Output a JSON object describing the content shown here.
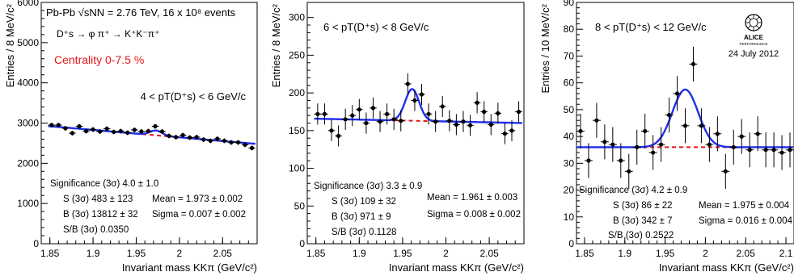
{
  "chart_data": [
    {
      "type": "scatter",
      "panel": "4-6 GeV",
      "xlabel": "Invariant mass KKπ (GeV/c²)",
      "ylabel": "Entries / 8 MeV/c²",
      "xlim": [
        1.84,
        2.09
      ],
      "ylim": [
        0,
        6000
      ],
      "xticks": [
        1.85,
        1.9,
        1.95,
        2.0,
        2.05
      ],
      "xtick_labels": [
        "1.85",
        "1.9",
        "1.95",
        "2",
        "2.05"
      ],
      "yticks": [
        0,
        1000,
        2000,
        3000,
        4000,
        5000,
        6000
      ],
      "ytick_labels": [
        "0",
        "1000",
        "2000",
        "3000",
        "4000",
        "5000",
        "6000"
      ],
      "header_lines": [
        "Pb-Pb √sNN = 2.76 TeV, 16 x 10⁸ events",
        "D⁺s → φ π⁺ → K⁺K⁻π⁺"
      ],
      "centrality": "Centrality 0-7.5 %",
      "pt_range": "4 < pT(D⁺s) < 6 GeV/c",
      "stats": [
        "Significance (3σ) 4.0 ± 1.0",
        "S (3σ) 483 ± 123",
        "B (3σ) 13812 ± 32",
        "S/B (3σ) 0.0350",
        "Mean = 1.973 ± 0.002",
        "Sigma = 0.007 ± 0.002"
      ],
      "points": {
        "x": [
          1.852,
          1.86,
          1.868,
          1.876,
          1.884,
          1.892,
          1.9,
          1.908,
          1.916,
          1.924,
          1.932,
          1.94,
          1.948,
          1.956,
          1.964,
          1.972,
          1.98,
          1.988,
          1.996,
          2.004,
          2.012,
          2.02,
          2.028,
          2.036,
          2.044,
          2.052,
          2.06,
          2.068,
          2.076,
          2.084
        ],
        "y": [
          2950,
          2950,
          2870,
          2750,
          2920,
          2800,
          2840,
          2790,
          2860,
          2780,
          2800,
          2760,
          2830,
          2790,
          2800,
          2920,
          2790,
          2680,
          2650,
          2700,
          2640,
          2650,
          2590,
          2560,
          2610,
          2560,
          2520,
          2520,
          2460,
          2380
        ],
        "yerr": 60
      },
      "fit": {
        "background": [
          2940,
          2480
        ],
        "signal_mean": 1.973,
        "signal_sigma": 0.007,
        "signal_height": 120
      }
    },
    {
      "type": "scatter",
      "panel": "6-8 GeV",
      "xlabel": "Invariant mass KKπ (GeV/c²)",
      "ylabel": "Entries / 8 MeV/c²",
      "xlim": [
        1.84,
        2.09
      ],
      "ylim": [
        0,
        320
      ],
      "xticks": [
        1.85,
        1.9,
        1.95,
        2.0,
        2.05
      ],
      "xtick_labels": [
        "1.85",
        "1.9",
        "1.95",
        "2",
        "2.05"
      ],
      "yticks": [
        0,
        50,
        100,
        150,
        200,
        250,
        300
      ],
      "ytick_labels": [
        "0",
        "50",
        "100",
        "150",
        "200",
        "250",
        "300"
      ],
      "pt_range": "6 < pT(D⁺s) < 8 GeV/c",
      "stats": [
        "Significance (3σ) 3.3 ± 0.9",
        "S (3σ) 109 ± 32",
        "B (3σ) 971 ± 9",
        "S/B (3σ) 0.1128",
        "Mean = 1.961 ± 0.003",
        "Sigma = 0.008 ± 0.002"
      ],
      "points": {
        "x": [
          1.852,
          1.86,
          1.868,
          1.876,
          1.884,
          1.892,
          1.9,
          1.908,
          1.916,
          1.924,
          1.932,
          1.94,
          1.948,
          1.956,
          1.964,
          1.972,
          1.98,
          1.988,
          1.996,
          2.004,
          2.012,
          2.02,
          2.028,
          2.036,
          2.044,
          2.052,
          2.06,
          2.068,
          2.076,
          2.084
        ],
        "y": [
          172,
          172,
          150,
          143,
          165,
          170,
          178,
          160,
          180,
          162,
          172,
          165,
          163,
          212,
          190,
          198,
          172,
          162,
          182,
          163,
          158,
          162,
          157,
          187,
          175,
          158,
          173,
          146,
          150,
          175
        ],
        "yerr": 14
      },
      "fit": {
        "background": [
          166,
          160
        ],
        "signal_mean": 1.961,
        "signal_sigma": 0.008,
        "signal_height": 42
      }
    },
    {
      "type": "scatter",
      "panel": "8-12 GeV",
      "xlabel": "Invariant mass KKπ (GeV/c²)",
      "ylabel": "Entries / 10 MeV/c²",
      "xlim": [
        1.84,
        2.11
      ],
      "ylim": [
        0,
        90
      ],
      "xticks": [
        1.85,
        1.9,
        1.95,
        2.0,
        2.05,
        2.1
      ],
      "xtick_labels": [
        "1.85",
        "1.9",
        "1.95",
        "2",
        "2.05",
        "2.1"
      ],
      "yticks": [
        0,
        10,
        20,
        30,
        40,
        50,
        60,
        70,
        80,
        90
      ],
      "ytick_labels": [
        "0",
        "10",
        "20",
        "30",
        "40",
        "50",
        "60",
        "70",
        "80",
        "90"
      ],
      "pt_range": "8 < pT(D⁺s) < 12 GeV/c",
      "logo_text": "ALICE",
      "logo_subtext": "PERFORMANCE",
      "date": "24 July 2012",
      "stats": [
        "Significance (3σ) 4.2 ± 0.9",
        "S (3σ) 86 ± 22",
        "B (3σ) 342 ± 7",
        "S/B (3σ) 0.2522",
        "Mean = 1.975 ± 0.004",
        "Sigma = 0.016 ± 0.004"
      ],
      "points": {
        "x": [
          1.845,
          1.855,
          1.865,
          1.875,
          1.885,
          1.895,
          1.905,
          1.915,
          1.925,
          1.935,
          1.945,
          1.955,
          1.965,
          1.975,
          1.985,
          1.995,
          2.005,
          2.015,
          2.025,
          2.035,
          2.045,
          2.055,
          2.065,
          2.075,
          2.085,
          2.095,
          2.105
        ],
        "y": [
          42,
          31,
          46,
          38,
          37,
          31,
          27,
          36,
          42,
          34,
          37,
          48,
          56,
          44,
          67,
          44,
          37,
          41,
          27,
          36,
          40,
          35,
          41,
          35,
          35,
          34,
          35
        ],
        "yerr": 6.5
      },
      "fit": {
        "background": [
          36,
          36
        ],
        "signal_mean": 1.975,
        "signal_sigma": 0.016,
        "signal_height": 21.5
      }
    }
  ]
}
